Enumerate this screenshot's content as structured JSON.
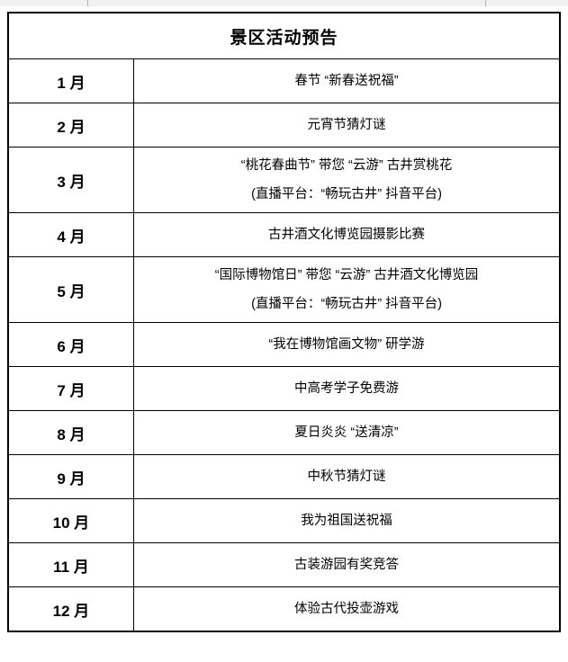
{
  "colors": {
    "border": "#000000",
    "text": "#000000",
    "page_background": "#ffffff",
    "top_strip_background": "#f1f1f1",
    "top_strip_tick": "#b0b0b0"
  },
  "table": {
    "title": "景区活动预告",
    "rows": [
      {
        "month": "1 月",
        "lines": [
          "春节 “新春送祝福”"
        ]
      },
      {
        "month": "2 月",
        "lines": [
          "元宵节猜灯谜"
        ]
      },
      {
        "month": "3 月",
        "lines": [
          "“桃花春曲节” 带您 “云游” 古井赏桃花",
          "(直播平台：“畅玩古井” 抖音平台)"
        ]
      },
      {
        "month": "4 月",
        "lines": [
          "古井酒文化博览园摄影比赛"
        ]
      },
      {
        "month": "5 月",
        "lines": [
          "“国际博物馆日” 带您 “云游” 古井酒文化博览园",
          "(直播平台：“畅玩古井” 抖音平台)"
        ]
      },
      {
        "month": "6 月",
        "lines": [
          "“我在博物馆画文物” 研学游"
        ]
      },
      {
        "month": "7 月",
        "lines": [
          "中高考学子免费游"
        ]
      },
      {
        "month": "8 月",
        "lines": [
          "夏日炎炎 “送清凉”"
        ]
      },
      {
        "month": "9 月",
        "lines": [
          "中秋节猜灯谜"
        ]
      },
      {
        "month": "10 月",
        "lines": [
          "我为祖国送祝福"
        ]
      },
      {
        "month": "11 月",
        "lines": [
          "古装游园有奖竞答"
        ]
      },
      {
        "month": "12 月",
        "lines": [
          "体验古代投壶游戏"
        ]
      }
    ]
  }
}
